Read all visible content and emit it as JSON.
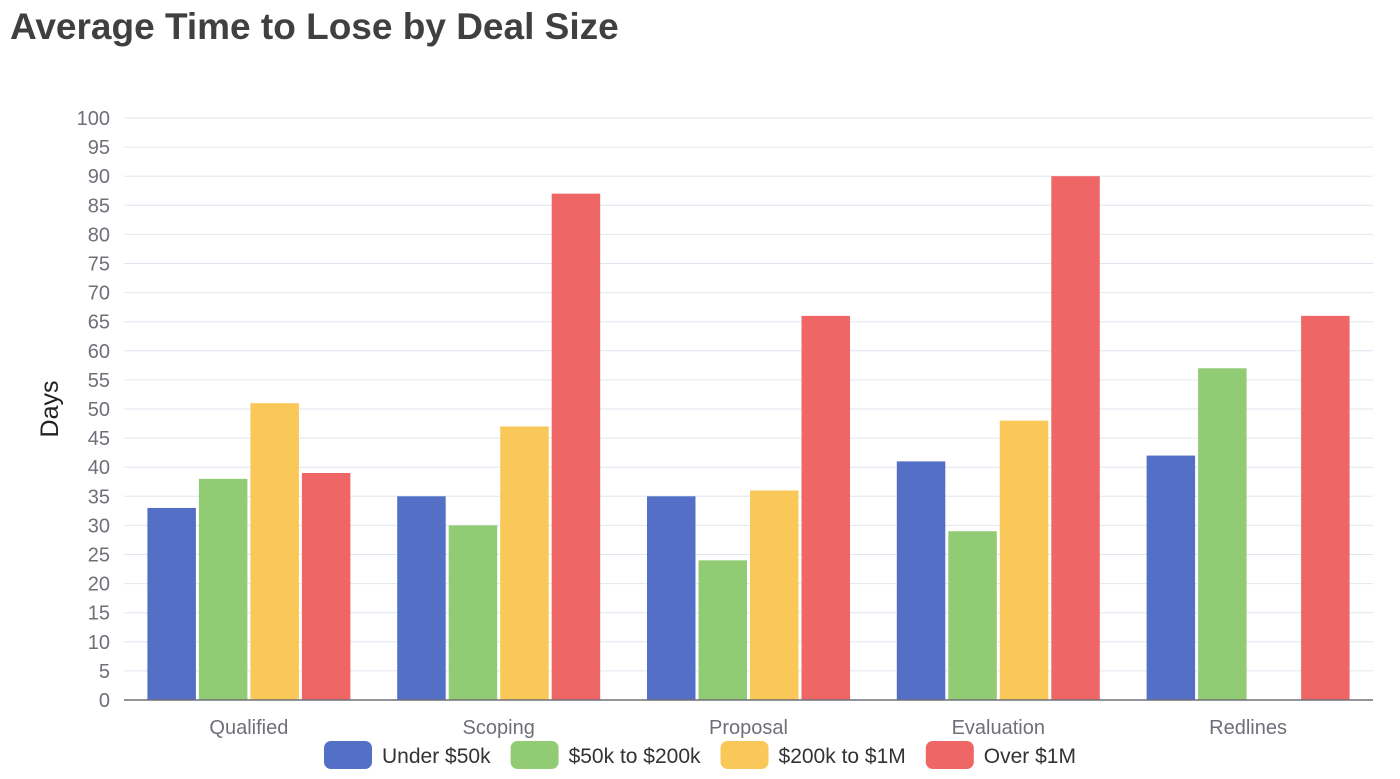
{
  "chart_data": {
    "type": "bar",
    "title": "Average Time to Lose by Deal Size",
    "xlabel": "",
    "ylabel": "Days",
    "ylim": [
      0,
      100
    ],
    "ytick_step": 5,
    "grid": true,
    "legend_position": "bottom",
    "categories": [
      "Qualified",
      "Scoping",
      "Proposal",
      "Evaluation",
      "Redlines"
    ],
    "series": [
      {
        "name": "Under $50k",
        "color": "#5470c6",
        "values": [
          33,
          35,
          35,
          41,
          42
        ]
      },
      {
        "name": "$50k to $200k",
        "color": "#91cc75",
        "values": [
          38,
          30,
          24,
          29,
          57
        ]
      },
      {
        "name": "$200k to $1M",
        "color": "#fac858",
        "values": [
          51,
          47,
          36,
          48,
          0
        ]
      },
      {
        "name": "Over $1M",
        "color": "#ee6666",
        "values": [
          39,
          87,
          66,
          90,
          66
        ]
      }
    ]
  }
}
